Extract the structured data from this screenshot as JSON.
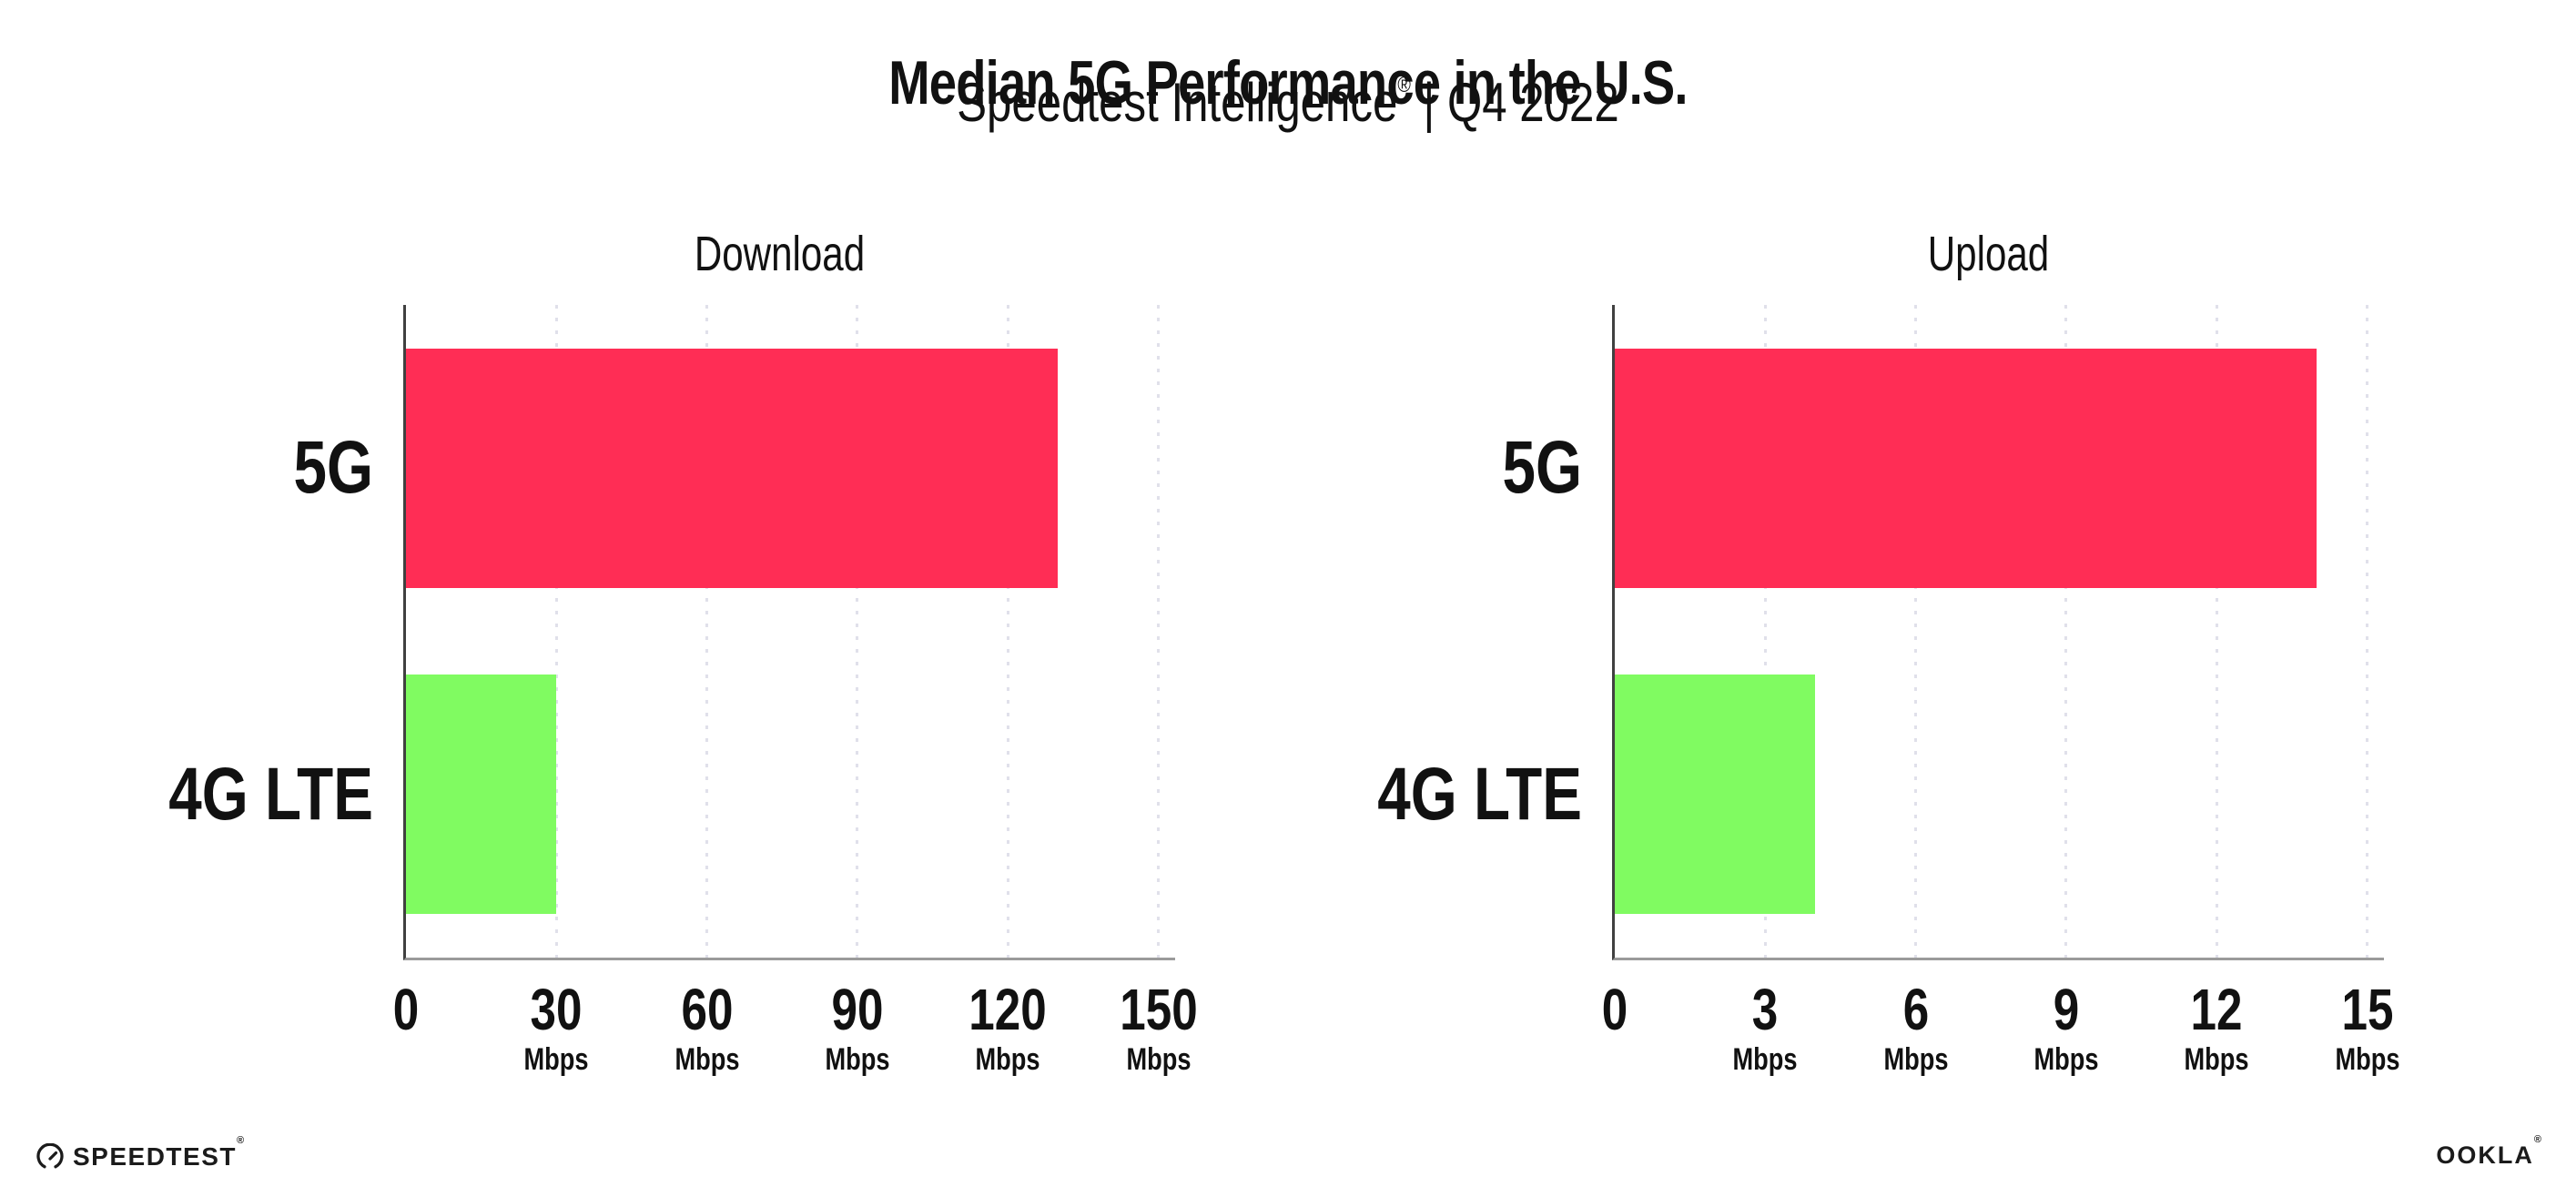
{
  "header": {
    "title": "Median 5G Performance in the U.S.",
    "subtitle": {
      "brand": "Speedtest Intelligence",
      "reg": "®",
      "rest": " | Q4 2022"
    }
  },
  "chart_data": [
    {
      "type": "bar",
      "orientation": "horizontal",
      "title": "Download",
      "categories": [
        "5G",
        "4G LTE"
      ],
      "values": [
        130,
        30
      ],
      "unit": "Mbps",
      "xticks": [
        0,
        30,
        60,
        90,
        120,
        150
      ],
      "xlim": [
        0,
        153
      ],
      "bar_colors": [
        "#FF2D55",
        "#80FB61"
      ],
      "grid": "vertical-dotted",
      "legend": "none"
    },
    {
      "type": "bar",
      "orientation": "horizontal",
      "title": "Upload",
      "categories": [
        "5G",
        "4G LTE"
      ],
      "values": [
        14,
        4
      ],
      "unit": "Mbps",
      "xticks": [
        0,
        3,
        6,
        9,
        12,
        15
      ],
      "xlim": [
        0,
        15.3
      ],
      "bar_colors": [
        "#FF2D55",
        "#80FB61"
      ],
      "grid": "vertical-dotted",
      "legend": "none"
    }
  ],
  "footer": {
    "speedtest": {
      "label": "SPEEDTEST",
      "mark": "®"
    },
    "ookla": {
      "label": "OOKLA",
      "mark": "®"
    }
  },
  "colors": {
    "bar_5g": "#FF2D55",
    "bar_4g_lte": "#80FB61",
    "y_axis_line": "#404040",
    "x_axis_line": "#9B9B9B",
    "gridline": "#E0E0EA",
    "text": "#111111"
  }
}
